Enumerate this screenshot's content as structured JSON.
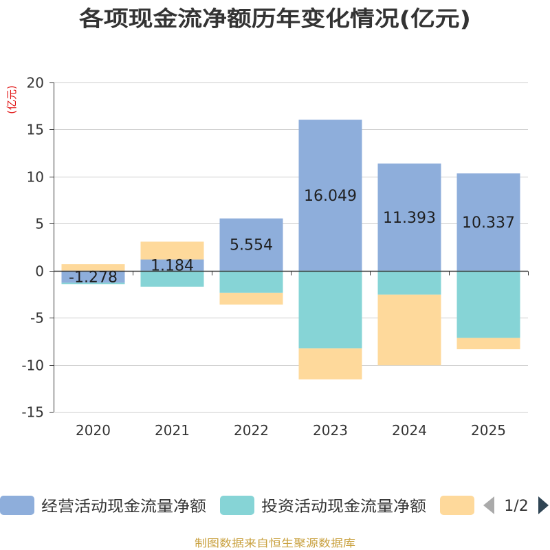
{
  "chart_data": {
    "type": "bar",
    "stacked": true,
    "title": "各项现金流净额历年变化情况(亿元)",
    "ylabel": "(亿元)",
    "xlabel": "",
    "categories": [
      "2020",
      "2021",
      "2022",
      "2023",
      "2024",
      "2025"
    ],
    "ylim": [
      -15,
      20
    ],
    "yticks": [
      20,
      15,
      10,
      5,
      0,
      -5,
      -10,
      -15
    ],
    "grid": true,
    "legend_position": "bottom",
    "series": [
      {
        "name": "经营活动现金流量净额",
        "color": "#8eaedb",
        "show_labels": true,
        "values": [
          -1.278,
          1.184,
          5.554,
          16.049,
          11.393,
          10.337
        ]
      },
      {
        "name": "投资活动现金流量净额",
        "color": "#86d4d6",
        "show_labels": false,
        "values": [
          -0.15,
          -1.7,
          -2.35,
          -8.25,
          -2.55,
          -7.15
        ]
      },
      {
        "name": "",
        "color": "#fed99b",
        "show_labels": false,
        "values": [
          0.7,
          1.9,
          -1.25,
          -3.3,
          -7.5,
          -1.2
        ]
      }
    ]
  },
  "legend": {
    "page": "1/2",
    "prev_icon": "caret-left-icon",
    "next_icon": "caret-right-icon",
    "prev_color": "#aaaaaa",
    "next_color": "#2f4554"
  },
  "source": "制图数据来自恒生聚源数据库",
  "colors": {
    "source_text": "#c9a13f",
    "axis": "#333333",
    "grid": "#cccccc"
  }
}
